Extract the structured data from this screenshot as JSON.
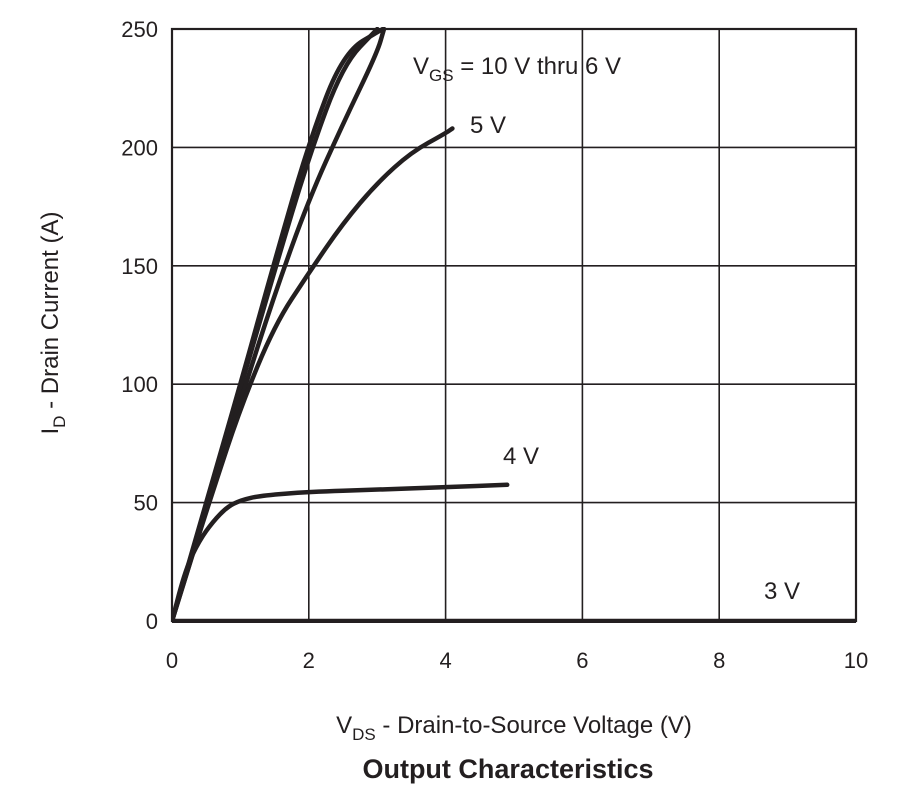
{
  "chart_data": {
    "type": "line",
    "title": "Output Characteristics",
    "xlabel": {
      "main": "V",
      "sub": "DS",
      "rest": " - Drain-to-Source Voltage (V)"
    },
    "ylabel": {
      "main": "I",
      "sub": "D",
      "rest": " - Drain Current (A)"
    },
    "xlim": [
      0,
      10
    ],
    "ylim": [
      0,
      250
    ],
    "xticks": [
      0,
      2,
      4,
      6,
      8,
      10
    ],
    "yticks": [
      0,
      50,
      100,
      150,
      200,
      250
    ],
    "grid": true,
    "series": [
      {
        "name": "V_GS = 10 V thru 6 V (upper)",
        "x": [
          0,
          0.5,
          1,
          1.5,
          2,
          2.5,
          3.08
        ],
        "y": [
          0,
          50,
          100,
          152,
          202,
          240,
          250
        ]
      },
      {
        "name": "V_GS = 10 V thru 6 V (middle)",
        "x": [
          0,
          0.5,
          1,
          1.5,
          2,
          2.5,
          3.0
        ],
        "y": [
          0,
          49,
          98,
          148,
          196,
          235,
          250
        ]
      },
      {
        "name": "V_GS = 10 V thru 6 V (lower)",
        "x": [
          0,
          0.5,
          1,
          1.5,
          2,
          2.5,
          3.0,
          3.1
        ],
        "y": [
          0,
          47,
          93,
          138,
          178,
          210,
          240,
          250
        ]
      },
      {
        "name": "5 V",
        "x": [
          0,
          0.3,
          0.6,
          1,
          1.5,
          2,
          2.5,
          3,
          3.5,
          4,
          4.1
        ],
        "y": [
          0,
          28,
          55,
          90,
          125,
          147,
          168,
          185,
          198,
          206,
          208
        ]
      },
      {
        "name": "4 V",
        "x": [
          0,
          0.2,
          0.4,
          0.6,
          0.8,
          1,
          1.3,
          2,
          3,
          4,
          4.9
        ],
        "y": [
          0,
          22,
          34,
          42,
          48,
          51,
          53,
          54.5,
          55.5,
          56.5,
          57.5
        ]
      },
      {
        "name": "3 V",
        "x": [
          0,
          10
        ],
        "y": [
          0,
          0
        ]
      }
    ],
    "annotations": [
      {
        "id": "vgs",
        "main": "V",
        "sub": "GS",
        "rest": " = 10 V thru 6 V"
      },
      {
        "id": "v5",
        "text": "5 V"
      },
      {
        "id": "v4",
        "text": "4 V"
      },
      {
        "id": "v3",
        "text": "3 V"
      }
    ]
  }
}
